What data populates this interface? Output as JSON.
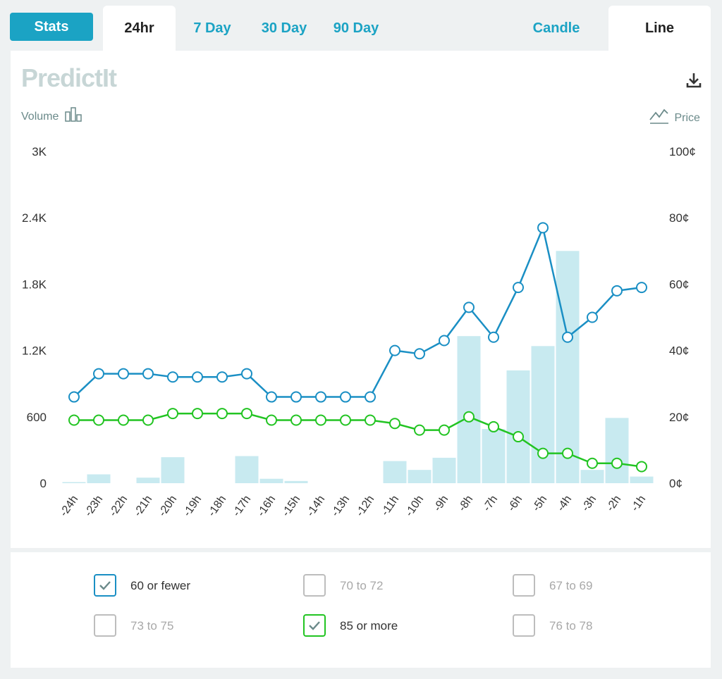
{
  "tabs": {
    "stats": "Stats",
    "ranges": [
      "24hr",
      "7 Day",
      "30 Day",
      "90 Day"
    ],
    "active_range": "24hr",
    "chart_types": [
      "Candle",
      "Line"
    ],
    "active_chart_type": "Line"
  },
  "logo": "PredictIt",
  "labels": {
    "volume": "Volume",
    "price": "Price"
  },
  "colors": {
    "accent": "#1ba3c4",
    "series_blue": "#1a8fc4",
    "series_green": "#22c422",
    "bars": "#c8eaf0"
  },
  "chart_data": {
    "type": "line",
    "x": [
      "-24h",
      "-23h",
      "-22h",
      "-21h",
      "-20h",
      "-19h",
      "-18h",
      "-17h",
      "-16h",
      "-15h",
      "-14h",
      "-13h",
      "-12h",
      "-11h",
      "-10h",
      "-9h",
      "-8h",
      "-7h",
      "-6h",
      "-5h",
      "-4h",
      "-3h",
      "-2h",
      "-1h"
    ],
    "left_axis": {
      "title": "Volume",
      "ticks": [
        "0",
        "600",
        "1.2K",
        "1.8K",
        "2.4K",
        "3K"
      ],
      "ylim": [
        0,
        3000
      ]
    },
    "right_axis": {
      "title": "Price",
      "ticks": [
        "0¢",
        "20¢",
        "40¢",
        "60¢",
        "80¢",
        "100¢"
      ],
      "ylim": [
        0,
        100
      ]
    },
    "volume": [
      10,
      80,
      0,
      50,
      235,
      0,
      0,
      245,
      40,
      20,
      0,
      0,
      0,
      200,
      120,
      230,
      1330,
      490,
      1020,
      1240,
      2100,
      120,
      590,
      60
    ],
    "series": [
      {
        "name": "60 or fewer",
        "color": "#1a8fc4",
        "values": [
          26,
          33,
          33,
          33,
          32,
          32,
          32,
          33,
          26,
          26,
          26,
          26,
          26,
          40,
          39,
          43,
          53,
          44,
          59,
          77,
          44,
          50,
          58,
          59
        ]
      },
      {
        "name": "85 or more",
        "color": "#22c422",
        "values": [
          19,
          19,
          19,
          19,
          21,
          21,
          21,
          21,
          19,
          19,
          19,
          19,
          19,
          18,
          16,
          16,
          20,
          17,
          14,
          9,
          9,
          6,
          6,
          5
        ]
      }
    ],
    "grid": false
  },
  "legend": [
    {
      "label": "60 or fewer",
      "checked": true,
      "color": "#1a8fc4"
    },
    {
      "label": "70 to 72",
      "checked": false,
      "color": "#bdbdbd"
    },
    {
      "label": "67 to 69",
      "checked": false,
      "color": "#bdbdbd"
    },
    {
      "label": "73 to 75",
      "checked": false,
      "color": "#bdbdbd"
    },
    {
      "label": "85 or more",
      "checked": true,
      "color": "#22c422"
    },
    {
      "label": "76 to 78",
      "checked": false,
      "color": "#bdbdbd"
    }
  ]
}
